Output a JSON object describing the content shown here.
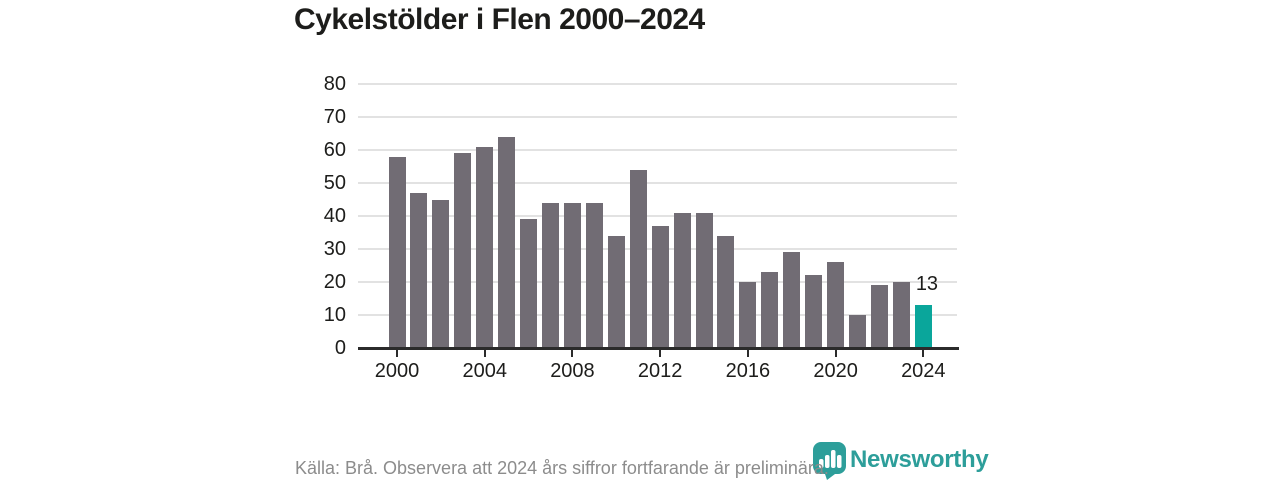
{
  "title": "Cykelstölder i Flen 2000–2024",
  "chart_data": {
    "type": "bar",
    "title": "Cykelstölder i Flen 2000–2024",
    "categories": [
      2000,
      2001,
      2002,
      2003,
      2004,
      2005,
      2006,
      2007,
      2008,
      2009,
      2010,
      2011,
      2012,
      2013,
      2014,
      2015,
      2016,
      2017,
      2018,
      2019,
      2020,
      2021,
      2022,
      2023,
      2024
    ],
    "values": [
      58,
      47,
      45,
      59,
      61,
      64,
      39,
      44,
      44,
      44,
      34,
      54,
      37,
      41,
      41,
      34,
      20,
      23,
      29,
      22,
      26,
      10,
      19,
      20,
      13
    ],
    "xlabel": "",
    "ylabel": "",
    "ylim": [
      0,
      80
    ],
    "yticks": [
      0,
      10,
      20,
      30,
      40,
      50,
      60,
      70,
      80
    ],
    "xtick_labels": [
      "2000",
      "2004",
      "2008",
      "2012",
      "2016",
      "2020",
      "2024"
    ],
    "grid": "horizontal",
    "legend": "none",
    "bar_color": "#716c74",
    "highlight_category": 2024,
    "highlight_color": "#0aa69b",
    "highlight_value_label": "13"
  },
  "footer": {
    "source_note": "Källa: Brå. Observera att 2024 års siffror fortfarande är preliminära."
  },
  "branding": {
    "wordmark": "Newsworthy",
    "logo_icon": "bar-chart-pin-icon",
    "brand_color": "#2d9e9a"
  }
}
